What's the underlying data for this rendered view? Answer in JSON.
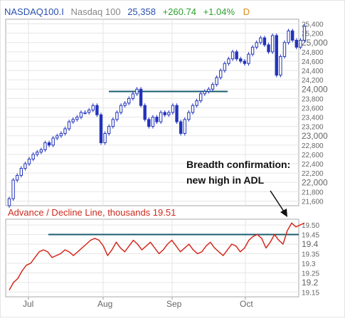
{
  "header": {
    "symbol": "NASDAQ100.I",
    "name": "Nasdaq 100",
    "price": "25,358",
    "change": "+260.74",
    "change_pct": "+1.04%",
    "period_flag": "D"
  },
  "adl_title": "Advance / Decline Line, thousands 19.51",
  "annotation": {
    "line1": "Breadth confirmation:",
    "line2": "new high in ADL"
  },
  "colors": {
    "symbol": "#2a4fb0",
    "name": "#888888",
    "price": "#2a4fb0",
    "change": "#2e9e2e",
    "period_flag": "#e08a1a",
    "candle": "#2233bb",
    "adl_line": "#d42a1e",
    "adl_title": "#cc2a1e",
    "level_line": "#1a5e6e",
    "grid": "#e6e6e6",
    "border": "#aaaaaa"
  },
  "chart_data": [
    {
      "type": "candlestick",
      "series": [
        {
          "name": "NASDAQ100.I",
          "values": [
            21650,
            22050,
            22150,
            22300,
            22400,
            22500,
            22600,
            22650,
            22700,
            22850,
            22800,
            22950,
            23000,
            23050,
            23150,
            23300,
            23350,
            23400,
            23500,
            23500,
            23550,
            23650,
            23450,
            22850,
            23050,
            23200,
            23350,
            23500,
            23650,
            23700,
            23800,
            23900,
            24000,
            23650,
            23350,
            23200,
            23400,
            23300,
            23500,
            23450,
            23500,
            23650,
            23300,
            23050,
            23350,
            23500,
            23650,
            23750,
            23900,
            23950,
            24000,
            24100,
            24250,
            24400,
            24550,
            24650,
            24800,
            24650,
            24600,
            24550,
            24750,
            24900,
            25000,
            25100,
            24950,
            24800,
            25150,
            24300,
            24700,
            25000,
            25250,
            25050,
            24900,
            25050,
            25350
          ]
        }
      ],
      "x_labels": [
        "Jul",
        "Aug",
        "Sep",
        "Oct"
      ],
      "y_ticks": [
        21600,
        21800,
        22000,
        22200,
        22400,
        22600,
        22800,
        23000,
        23200,
        23400,
        23600,
        23800,
        24000,
        24200,
        24400,
        24600,
        24800,
        25000,
        25200,
        25400
      ],
      "y_tick_labels": [
        "21,600",
        "21,800",
        "22,000",
        "22,200",
        "22,400",
        "22,600",
        "22,800",
        "23,000",
        "23,200",
        "23,400",
        "23,600",
        "23,800",
        "24,000",
        "24,200",
        "24,400",
        "24,600",
        "24,800",
        "25,000",
        "25,200",
        "25,400"
      ],
      "ylim": [
        21500,
        25500
      ],
      "reference_level": 23950,
      "grid": true
    },
    {
      "type": "line",
      "series": [
        {
          "name": "Advance / Decline Line",
          "values": [
            19.16,
            19.2,
            19.22,
            19.26,
            19.29,
            19.3,
            19.33,
            19.36,
            19.37,
            19.36,
            19.33,
            19.34,
            19.35,
            19.37,
            19.36,
            19.34,
            19.36,
            19.38,
            19.4,
            19.42,
            19.43,
            19.42,
            19.39,
            19.34,
            19.37,
            19.41,
            19.38,
            19.36,
            19.39,
            19.42,
            19.4,
            19.37,
            19.39,
            19.41,
            19.38,
            19.35,
            19.37,
            19.4,
            19.42,
            19.39,
            19.36,
            19.38,
            19.4,
            19.37,
            19.35,
            19.36,
            19.39,
            19.41,
            19.38,
            19.36,
            19.34,
            19.37,
            19.4,
            19.39,
            19.36,
            19.38,
            19.42,
            19.44,
            19.45,
            19.43,
            19.38,
            19.41,
            19.45,
            19.42,
            19.4,
            19.47,
            19.51,
            19.49,
            19.5,
            19.51
          ]
        }
      ],
      "x_labels": [
        "Jul",
        "Aug",
        "Sep",
        "Oct"
      ],
      "y_ticks": [
        19.15,
        19.2,
        19.25,
        19.3,
        19.35,
        19.4,
        19.45,
        19.5
      ],
      "y_tick_labels": [
        "19.15",
        "19.2",
        "19.25",
        "19.3",
        "19.35",
        "19.4",
        "19.45",
        "19.50"
      ],
      "emphasized_ticks": [
        "19.2",
        "19.4"
      ],
      "ylim": [
        19.125,
        19.53
      ],
      "reference_level": 19.45,
      "last_value": 19.51,
      "grid": true
    }
  ]
}
